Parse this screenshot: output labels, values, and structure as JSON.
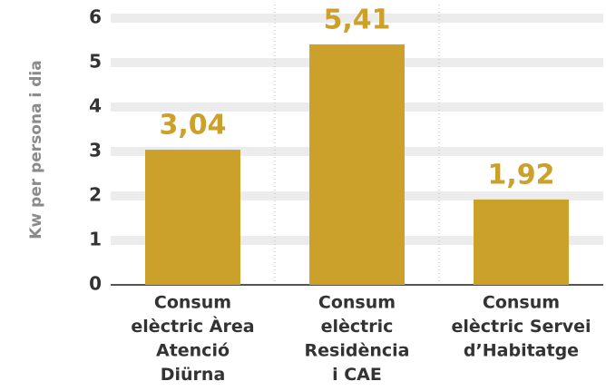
{
  "chart_data": {
    "type": "bar",
    "y_label": "Kw per persona i dia",
    "categories": [
      [
        "Consum",
        "elèctric Àrea",
        "Atenció",
        "Diürna"
      ],
      [
        "Consum",
        "elèctric",
        "Residència",
        "i CAE"
      ],
      [
        "Consum",
        "elèctric Servei",
        "d’Habitatge"
      ]
    ],
    "values": [
      3.04,
      5.41,
      1.92
    ],
    "value_labels": [
      "3,04",
      "5,41",
      "1,92"
    ],
    "color": "#cba12b",
    "ylim": [
      0,
      6
    ],
    "yticks": [
      0,
      1,
      2,
      3,
      4,
      5,
      6
    ],
    "grid": true
  }
}
